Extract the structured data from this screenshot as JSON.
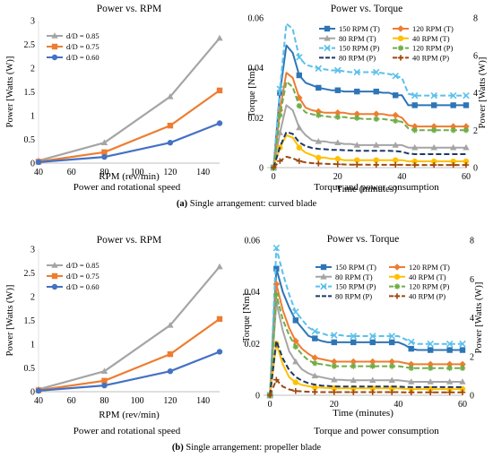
{
  "captions": {
    "a_left": "Power and rotational speed",
    "a_right": "Torque and power consumption",
    "a_label": "(a)",
    "a_text": " Single arrangement: curved blade",
    "b_left": "Power and rotational speed",
    "b_right": "Torque and power consumption",
    "b_label": "(b)",
    "b_text": " Single arrangement: propeller blade"
  },
  "chart_data": [
    {
      "id": "a_power",
      "type": "line",
      "title": "Power vs. RPM",
      "xlabel": "RPM (rev/min)",
      "ylabel": "Power  [Watts (W)]",
      "xlim": [
        40,
        150
      ],
      "ylim": [
        0,
        3
      ],
      "xticks": [
        40,
        60,
        80,
        100,
        120,
        140
      ],
      "yticks": [
        0,
        0.5,
        1,
        1.5,
        2,
        2.5,
        3
      ],
      "ytick_labels": [
        "0",
        "0.5",
        "1",
        "1.5",
        "2",
        "2.5",
        "3"
      ],
      "legend": "top-left",
      "x": [
        40,
        80,
        120,
        150
      ],
      "series": [
        {
          "name": "d/D = 0.85",
          "color": "#a5a5a5",
          "marker": "triangle",
          "values": [
            0.05,
            0.43,
            1.4,
            2.63
          ]
        },
        {
          "name": "d/D = 0.75",
          "color": "#ed7d31",
          "marker": "square",
          "values": [
            0.03,
            0.23,
            0.79,
            1.53
          ]
        },
        {
          "name": "d/D = 0.60",
          "color": "#4472c4",
          "marker": "circle",
          "values": [
            0.02,
            0.13,
            0.43,
            0.84
          ]
        }
      ]
    },
    {
      "id": "a_torque",
      "type": "line",
      "title": "Power vs. Torque",
      "xlabel": "Time (minutes)",
      "ylabel": "Torque  [Nm]",
      "y2label": "Power  [Watts (W)]",
      "xlim": [
        -2,
        60
      ],
      "ylim": [
        0,
        0.06
      ],
      "y2lim": [
        0,
        8
      ],
      "xticks": [
        0,
        20,
        40,
        60
      ],
      "yticks": [
        0,
        0.02,
        0.04,
        0.06
      ],
      "ytick_labels": [
        "0",
        "0.02",
        "0.04",
        "0.06"
      ],
      "y2ticks": [
        0,
        2,
        4,
        6,
        8
      ],
      "legend": "top-right",
      "x": [
        0,
        2,
        4,
        6,
        8,
        10,
        12,
        14,
        16,
        18,
        20,
        22,
        24,
        26,
        28,
        30,
        32,
        34,
        36,
        38,
        40,
        42,
        44,
        46,
        48,
        50,
        52,
        54,
        56,
        58,
        60
      ],
      "series": [
        {
          "name": "150 RPM (T)",
          "color": "#2e75b6",
          "marker": "square",
          "dash": "",
          "values": [
            0,
            0.03,
            0.049,
            0.046,
            0.037,
            0.034,
            0.033,
            0.032,
            0.0315,
            0.031,
            0.031,
            0.0305,
            0.0305,
            0.0305,
            0.0305,
            0.0305,
            0.0305,
            0.03,
            0.03,
            0.029,
            0.029,
            0.025,
            0.025,
            0.025,
            0.025,
            0.025,
            0.025,
            0.025,
            0.025,
            0.025,
            0.025
          ]
        },
        {
          "name": "120 RPM (T)",
          "color": "#ed7d31",
          "marker": "diamond",
          "dash": "",
          "values": [
            0,
            0.023,
            0.038,
            0.036,
            0.028,
            0.024,
            0.023,
            0.0225,
            0.022,
            0.022,
            0.022,
            0.022,
            0.0215,
            0.0215,
            0.0215,
            0.0215,
            0.0215,
            0.0215,
            0.021,
            0.021,
            0.02,
            0.017,
            0.0165,
            0.0165,
            0.0165,
            0.0165,
            0.0165,
            0.0165,
            0.0165,
            0.0165,
            0.0165
          ]
        },
        {
          "name": "80 RPM (T)",
          "color": "#a5a5a5",
          "marker": "triangle",
          "dash": "",
          "values": [
            0,
            0.014,
            0.025,
            0.023,
            0.016,
            0.013,
            0.011,
            0.0105,
            0.0105,
            0.01,
            0.01,
            0.0095,
            0.0095,
            0.009,
            0.009,
            0.009,
            0.009,
            0.009,
            0.009,
            0.009,
            0.009,
            0.008,
            0.008,
            0.008,
            0.008,
            0.008,
            0.008,
            0.008,
            0.008,
            0.008,
            0.008
          ]
        },
        {
          "name": "40 RPM (T)",
          "color": "#ffc000",
          "marker": "circle",
          "dash": "",
          "values": [
            0,
            0.008,
            0.013,
            0.012,
            0.008,
            0.006,
            0.005,
            0.004,
            0.004,
            0.0035,
            0.0035,
            0.003,
            0.003,
            0.003,
            0.003,
            0.003,
            0.003,
            0.003,
            0.003,
            0.003,
            0.003,
            0.0025,
            0.0025,
            0.0025,
            0.0025,
            0.0025,
            0.0025,
            0.0025,
            0.0025,
            0.0025,
            0.0025
          ]
        },
        {
          "name": "150 RPM (P)",
          "color": "#5bc0eb",
          "marker": "x",
          "dash": "6,3",
          "values": [
            0,
            4.2,
            7.7,
            7.4,
            5.9,
            5.5,
            5.4,
            5.3,
            5.25,
            5.2,
            5.2,
            5.15,
            5.1,
            5.1,
            5.1,
            5.1,
            5.1,
            5.05,
            5.0,
            4.9,
            4.8,
            3.95,
            3.85,
            3.85,
            3.85,
            3.85,
            3.85,
            3.85,
            3.85,
            3.85,
            3.85
          ]
        },
        {
          "name": "120 RPM (P)",
          "color": "#70ad47",
          "marker": "star",
          "dash": "6,3",
          "values": [
            0,
            2.8,
            4.6,
            4.3,
            3.3,
            2.95,
            2.85,
            2.8,
            2.75,
            2.7,
            2.7,
            2.7,
            2.65,
            2.65,
            2.6,
            2.6,
            2.6,
            2.6,
            2.55,
            2.5,
            2.45,
            2.1,
            2.0,
            2.0,
            2.0,
            2.0,
            2.0,
            2.0,
            2.0,
            2.0,
            2.0
          ]
        },
        {
          "name": "80 RPM (P)",
          "color": "#1f3864",
          "marker": "none",
          "dash": "6,3",
          "values": [
            0,
            1.1,
            1.9,
            1.8,
            1.35,
            1.15,
            1.05,
            1.0,
            0.98,
            0.95,
            0.95,
            0.93,
            0.92,
            0.9,
            0.9,
            0.9,
            0.9,
            0.9,
            0.9,
            0.88,
            0.85,
            0.75,
            0.72,
            0.72,
            0.72,
            0.72,
            0.72,
            0.72,
            0.72,
            0.72,
            0.72
          ]
        },
        {
          "name": "40 RPM (P)",
          "color": "#9e480e",
          "marker": "plus",
          "dash": "6,3",
          "values": [
            0,
            0.35,
            0.58,
            0.5,
            0.35,
            0.28,
            0.24,
            0.22,
            0.2,
            0.19,
            0.18,
            0.17,
            0.16,
            0.16,
            0.16,
            0.15,
            0.15,
            0.15,
            0.15,
            0.15,
            0.15,
            0.14,
            0.14,
            0.14,
            0.14,
            0.14,
            0.14,
            0.14,
            0.14,
            0.14,
            0.14
          ]
        }
      ]
    },
    {
      "id": "b_power",
      "type": "line",
      "title": "Power vs. RPM",
      "xlabel": "RPM (rev/min)",
      "ylabel": "Power  [Watts (W)]",
      "xlim": [
        40,
        150
      ],
      "ylim": [
        0,
        3
      ],
      "xticks": [
        40,
        60,
        80,
        100,
        120,
        140
      ],
      "yticks": [
        0,
        0.5,
        1,
        1.5,
        2,
        2.5,
        3
      ],
      "ytick_labels": [
        "0",
        "0.5",
        "1",
        "1.5",
        "2",
        "2.5",
        "3"
      ],
      "legend": "top-left",
      "x": [
        40,
        80,
        120,
        150
      ],
      "series": [
        {
          "name": "d/D = 0.85",
          "color": "#a5a5a5",
          "marker": "triangle",
          "values": [
            0.05,
            0.43,
            1.4,
            2.63
          ]
        },
        {
          "name": "d/D = 0.75",
          "color": "#ed7d31",
          "marker": "square",
          "values": [
            0.03,
            0.23,
            0.79,
            1.53
          ]
        },
        {
          "name": "d/D = 0.60",
          "color": "#4472c4",
          "marker": "circle",
          "values": [
            0.02,
            0.13,
            0.43,
            0.84
          ]
        }
      ]
    },
    {
      "id": "b_torque",
      "type": "line",
      "title": "Power vs. Torque",
      "xlabel": "Time (minutes)",
      "ylabel": "Torque  [Nm]",
      "y2label": "Power  [Watts (W)]",
      "xlim": [
        -2,
        60
      ],
      "ylim": [
        0,
        0.06
      ],
      "y2lim": [
        0,
        8
      ],
      "xticks": [
        0,
        20,
        40,
        60
      ],
      "yticks": [
        0,
        0.02,
        0.04,
        0.06
      ],
      "ytick_labels": [
        "0",
        "0.02",
        "0.04",
        "0.06"
      ],
      "y2ticks": [
        0,
        2,
        4,
        6,
        8
      ],
      "legend": "top-right",
      "x": [
        0,
        2,
        4,
        6,
        8,
        10,
        12,
        14,
        16,
        18,
        20,
        22,
        24,
        26,
        28,
        30,
        32,
        34,
        36,
        38,
        40,
        42,
        44,
        46,
        48,
        50,
        52,
        54,
        56,
        58,
        60
      ],
      "series": [
        {
          "name": "150 RPM (T)",
          "color": "#2e75b6",
          "marker": "square",
          "dash": "",
          "values": [
            0,
            0.049,
            0.04,
            0.034,
            0.029,
            0.026,
            0.023,
            0.022,
            0.021,
            0.0205,
            0.0205,
            0.0205,
            0.0205,
            0.0205,
            0.0205,
            0.0205,
            0.0205,
            0.0205,
            0.0205,
            0.0205,
            0.0205,
            0.0195,
            0.018,
            0.0175,
            0.0175,
            0.0175,
            0.0175,
            0.0175,
            0.0175,
            0.0175,
            0.0175
          ]
        },
        {
          "name": "120 RPM (T)",
          "color": "#ed7d31",
          "marker": "diamond",
          "dash": "",
          "values": [
            0,
            0.043,
            0.033,
            0.026,
            0.021,
            0.018,
            0.016,
            0.0145,
            0.014,
            0.0135,
            0.013,
            0.013,
            0.013,
            0.013,
            0.013,
            0.013,
            0.013,
            0.013,
            0.013,
            0.013,
            0.013,
            0.0125,
            0.012,
            0.012,
            0.012,
            0.012,
            0.012,
            0.012,
            0.012,
            0.012,
            0.012
          ]
        },
        {
          "name": "80 RPM (T)",
          "color": "#a5a5a5",
          "marker": "triangle",
          "dash": "",
          "values": [
            0,
            0.036,
            0.025,
            0.017,
            0.013,
            0.01,
            0.0085,
            0.0075,
            0.007,
            0.0065,
            0.006,
            0.006,
            0.0058,
            0.0058,
            0.0058,
            0.0058,
            0.0058,
            0.0058,
            0.0058,
            0.0058,
            0.0058,
            0.0055,
            0.0052,
            0.0052,
            0.0052,
            0.0052,
            0.0052,
            0.0052,
            0.0052,
            0.0052,
            0.0052
          ]
        },
        {
          "name": "40 RPM (T)",
          "color": "#ffc000",
          "marker": "circle",
          "dash": "",
          "values": [
            0,
            0.02,
            0.012,
            0.007,
            0.005,
            0.004,
            0.0035,
            0.003,
            0.003,
            0.0028,
            0.0027,
            0.0027,
            0.0027,
            0.0027,
            0.0027,
            0.0027,
            0.0027,
            0.0027,
            0.0027,
            0.0027,
            0.0027,
            0.0025,
            0.0024,
            0.0024,
            0.0024,
            0.0024,
            0.0024,
            0.0024,
            0.0024,
            0.0024,
            0.0024
          ]
        },
        {
          "name": "150 RPM (P)",
          "color": "#5bc0eb",
          "marker": "x",
          "dash": "6,3",
          "values": [
            0,
            7.6,
            6.3,
            5.2,
            4.3,
            3.9,
            3.5,
            3.3,
            3.2,
            3.1,
            3.1,
            3.1,
            3.05,
            3.05,
            3.05,
            3.05,
            3.05,
            3.05,
            3.05,
            3.05,
            3.05,
            2.9,
            2.75,
            2.65,
            2.65,
            2.65,
            2.65,
            2.65,
            2.65,
            2.65,
            2.65
          ]
        },
        {
          "name": "120 RPM (P)",
          "color": "#70ad47",
          "marker": "star",
          "dash": "6,3",
          "values": [
            0,
            5.2,
            3.9,
            3.1,
            2.5,
            2.1,
            1.8,
            1.65,
            1.6,
            1.55,
            1.5,
            1.5,
            1.5,
            1.5,
            1.5,
            1.5,
            1.5,
            1.5,
            1.5,
            1.5,
            1.5,
            1.45,
            1.4,
            1.4,
            1.4,
            1.4,
            1.4,
            1.4,
            1.4,
            1.4,
            1.4
          ]
        },
        {
          "name": "80 RPM (P)",
          "color": "#1f3864",
          "marker": "none",
          "dash": "6,3",
          "values": [
            0,
            2.8,
            1.9,
            1.3,
            0.95,
            0.75,
            0.62,
            0.55,
            0.5,
            0.48,
            0.46,
            0.45,
            0.45,
            0.45,
            0.45,
            0.45,
            0.45,
            0.45,
            0.45,
            0.45,
            0.45,
            0.43,
            0.42,
            0.42,
            0.42,
            0.42,
            0.42,
            0.42,
            0.42,
            0.42,
            0.42
          ]
        },
        {
          "name": "40 RPM (P)",
          "color": "#9e480e",
          "marker": "plus",
          "dash": "6,3",
          "values": [
            0,
            0.8,
            0.45,
            0.3,
            0.22,
            0.2,
            0.18,
            0.17,
            0.16,
            0.16,
            0.16,
            0.16,
            0.16,
            0.16,
            0.16,
            0.16,
            0.16,
            0.16,
            0.16,
            0.16,
            0.16,
            0.15,
            0.15,
            0.15,
            0.15,
            0.15,
            0.15,
            0.15,
            0.15,
            0.15,
            0.15
          ]
        }
      ]
    }
  ]
}
